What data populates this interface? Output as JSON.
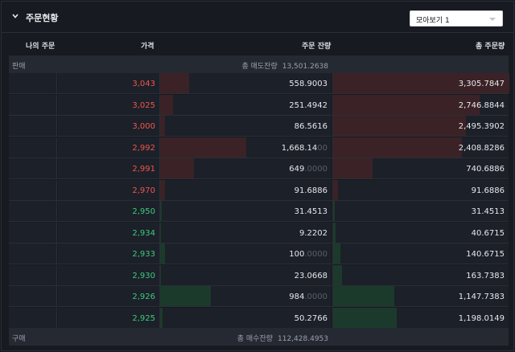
{
  "header": {
    "title": "주문현황",
    "dropdown_value": "모아보기 1"
  },
  "columns": {
    "my_order": "나의 주문",
    "price": "가격",
    "remaining": "주문 잔량",
    "total": "총 주문량"
  },
  "sell_section": {
    "label": "판매",
    "total_label": "총 매도잔량",
    "total_value": "13,501.2638"
  },
  "buy_section": {
    "label": "구매",
    "total_label": "총 매수잔량",
    "total_value": "112,428.4953"
  },
  "max_remaining": 1668.14,
  "max_total": 3305.7847,
  "asks": [
    {
      "price": "3,043",
      "remaining": "558.9003",
      "remaining_dim": "",
      "remaining_value": 558.9003,
      "total": "3,305.7847",
      "total_value": 3305.7847
    },
    {
      "price": "3,025",
      "remaining": "251.4942",
      "remaining_dim": "",
      "remaining_value": 251.4942,
      "total": "2,746.8844",
      "total_value": 2746.8844
    },
    {
      "price": "3,000",
      "remaining": "86.5616",
      "remaining_dim": "",
      "remaining_value": 86.5616,
      "total": "2,495.3902",
      "total_value": 2495.3902
    },
    {
      "price": "2,992",
      "remaining": "1,668.14",
      "remaining_dim": "00",
      "remaining_value": 1668.14,
      "total": "2,408.8286",
      "total_value": 2408.8286
    },
    {
      "price": "2,991",
      "remaining": "649",
      "remaining_dim": ".0000",
      "remaining_value": 649,
      "total": "740.6886",
      "total_value": 740.6886
    },
    {
      "price": "2,970",
      "remaining": "91.6886",
      "remaining_dim": "",
      "remaining_value": 91.6886,
      "total": "91.6886",
      "total_value": 91.6886
    }
  ],
  "bids": [
    {
      "price": "2,950",
      "remaining": "31.4513",
      "remaining_dim": "",
      "remaining_value": 31.4513,
      "total": "31.4513",
      "total_value": 31.4513
    },
    {
      "price": "2,934",
      "remaining": "9.2202",
      "remaining_dim": "",
      "remaining_value": 9.2202,
      "total": "40.6715",
      "total_value": 40.6715
    },
    {
      "price": "2,933",
      "remaining": "100",
      "remaining_dim": ".0000",
      "remaining_value": 100,
      "total": "140.6715",
      "total_value": 140.6715
    },
    {
      "price": "2,930",
      "remaining": "23.0668",
      "remaining_dim": "",
      "remaining_value": 23.0668,
      "total": "163.7383",
      "total_value": 163.7383
    },
    {
      "price": "2,926",
      "remaining": "984",
      "remaining_dim": ".0000",
      "remaining_value": 984,
      "total": "1,147.7383",
      "total_value": 1147.7383
    },
    {
      "price": "2,925",
      "remaining": "50.2766",
      "remaining_dim": "",
      "remaining_value": 50.2766,
      "total": "1,198.0149",
      "total_value": 1198.0149
    }
  ],
  "colors": {
    "ask_price": "#f0554e",
    "bid_price": "#3ccb7f",
    "ask_bar": "#3b2226",
    "bid_bar": "#1c3a2c"
  }
}
